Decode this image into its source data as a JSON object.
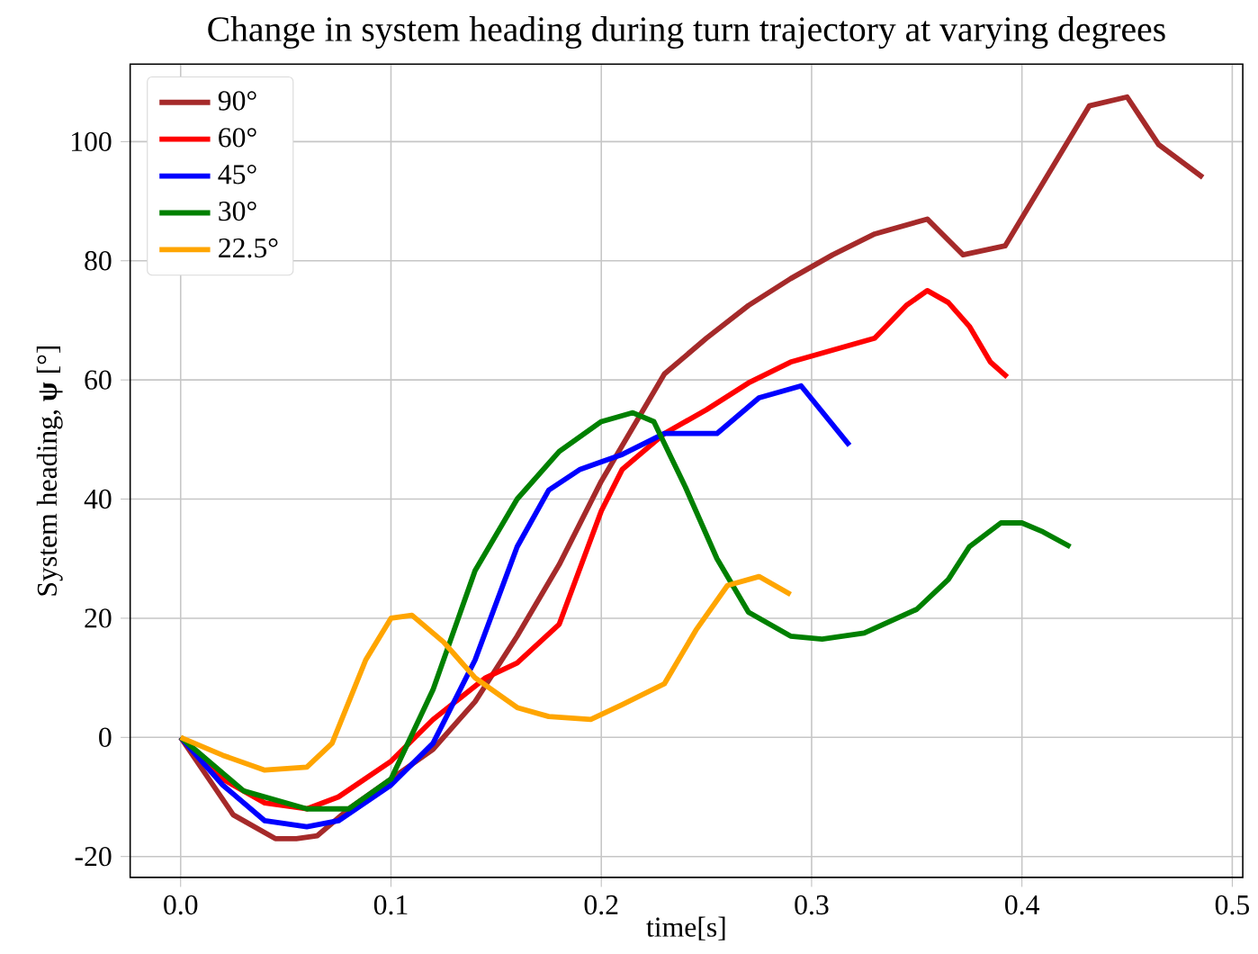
{
  "chart_data": {
    "type": "line",
    "title": "Change in system heading during turn trajectory at varying degrees",
    "xlabel": "time[s]",
    "ylabel": "System heading, **ψ** [°]",
    "xlim": [
      -0.024,
      0.505
    ],
    "ylim": [
      -23.5,
      113
    ],
    "xticks": [
      {
        "value": 0,
        "label": "0.0"
      },
      0.1,
      0.2,
      0.3,
      0.4,
      0.5
    ],
    "yticks": [
      -20,
      0,
      20,
      40,
      60,
      80,
      100
    ],
    "grid": true,
    "legend": "top left",
    "line_style": "solid",
    "series": [
      {
        "name": "90°",
        "color": "#a52a2a",
        "x": [
          0,
          0.025,
          0.045,
          0.055,
          0.065,
          0.08,
          0.1,
          0.12,
          0.14,
          0.16,
          0.18,
          0.2,
          0.23,
          0.25,
          0.27,
          0.29,
          0.31,
          0.33,
          0.355,
          0.372,
          0.392,
          0.432,
          0.45,
          0.465,
          0.486
        ],
        "values": [
          0,
          -13,
          -17,
          -17,
          -16.5,
          -12,
          -7,
          -2,
          6,
          17,
          29,
          43,
          61,
          67,
          72.5,
          77,
          81,
          84.5,
          87,
          81,
          82.5,
          106,
          107.5,
          99.5,
          94
        ]
      },
      {
        "name": "60°",
        "color": "#ff0000",
        "x": [
          0,
          0.02,
          0.04,
          0.06,
          0.075,
          0.1,
          0.12,
          0.145,
          0.16,
          0.18,
          0.2,
          0.21,
          0.23,
          0.25,
          0.27,
          0.29,
          0.31,
          0.33,
          0.345,
          0.355,
          0.365,
          0.375,
          0.385,
          0.393
        ],
        "values": [
          0,
          -7,
          -11,
          -12,
          -10,
          -4,
          3,
          10,
          12.5,
          19,
          38,
          45,
          51,
          55,
          59.5,
          63,
          65,
          67,
          72.5,
          75,
          73,
          69,
          63,
          60.5
        ]
      },
      {
        "name": "45°",
        "color": "#0000ff",
        "x": [
          0,
          0.02,
          0.04,
          0.06,
          0.075,
          0.1,
          0.12,
          0.14,
          0.16,
          0.175,
          0.19,
          0.21,
          0.23,
          0.255,
          0.275,
          0.295,
          0.318
        ],
        "values": [
          0,
          -8,
          -14,
          -15,
          -14,
          -8,
          -1,
          13,
          32,
          41.5,
          45,
          47.5,
          51,
          51,
          57,
          59,
          49
        ]
      },
      {
        "name": "30°",
        "color": "#008000",
        "x": [
          0,
          0.03,
          0.06,
          0.08,
          0.1,
          0.12,
          0.14,
          0.16,
          0.18,
          0.2,
          0.215,
          0.225,
          0.24,
          0.255,
          0.27,
          0.29,
          0.305,
          0.325,
          0.35,
          0.365,
          0.375,
          0.39,
          0.4,
          0.41,
          0.423
        ],
        "values": [
          0,
          -9,
          -12,
          -12,
          -7,
          8,
          28,
          40,
          48,
          53,
          54.5,
          53,
          42,
          30,
          21,
          17,
          16.5,
          17.5,
          21.5,
          26.5,
          32,
          36,
          36,
          34.5,
          32
        ]
      },
      {
        "name": "22.5°",
        "color": "#ffa500",
        "x": [
          0,
          0.02,
          0.04,
          0.06,
          0.072,
          0.088,
          0.1,
          0.11,
          0.125,
          0.14,
          0.16,
          0.175,
          0.195,
          0.21,
          0.23,
          0.245,
          0.26,
          0.275,
          0.29
        ],
        "values": [
          0,
          -3,
          -5.5,
          -5,
          -1,
          13,
          20,
          20.5,
          16,
          10,
          5,
          3.5,
          3,
          5.5,
          9,
          18,
          25.5,
          27,
          24
        ]
      }
    ]
  }
}
